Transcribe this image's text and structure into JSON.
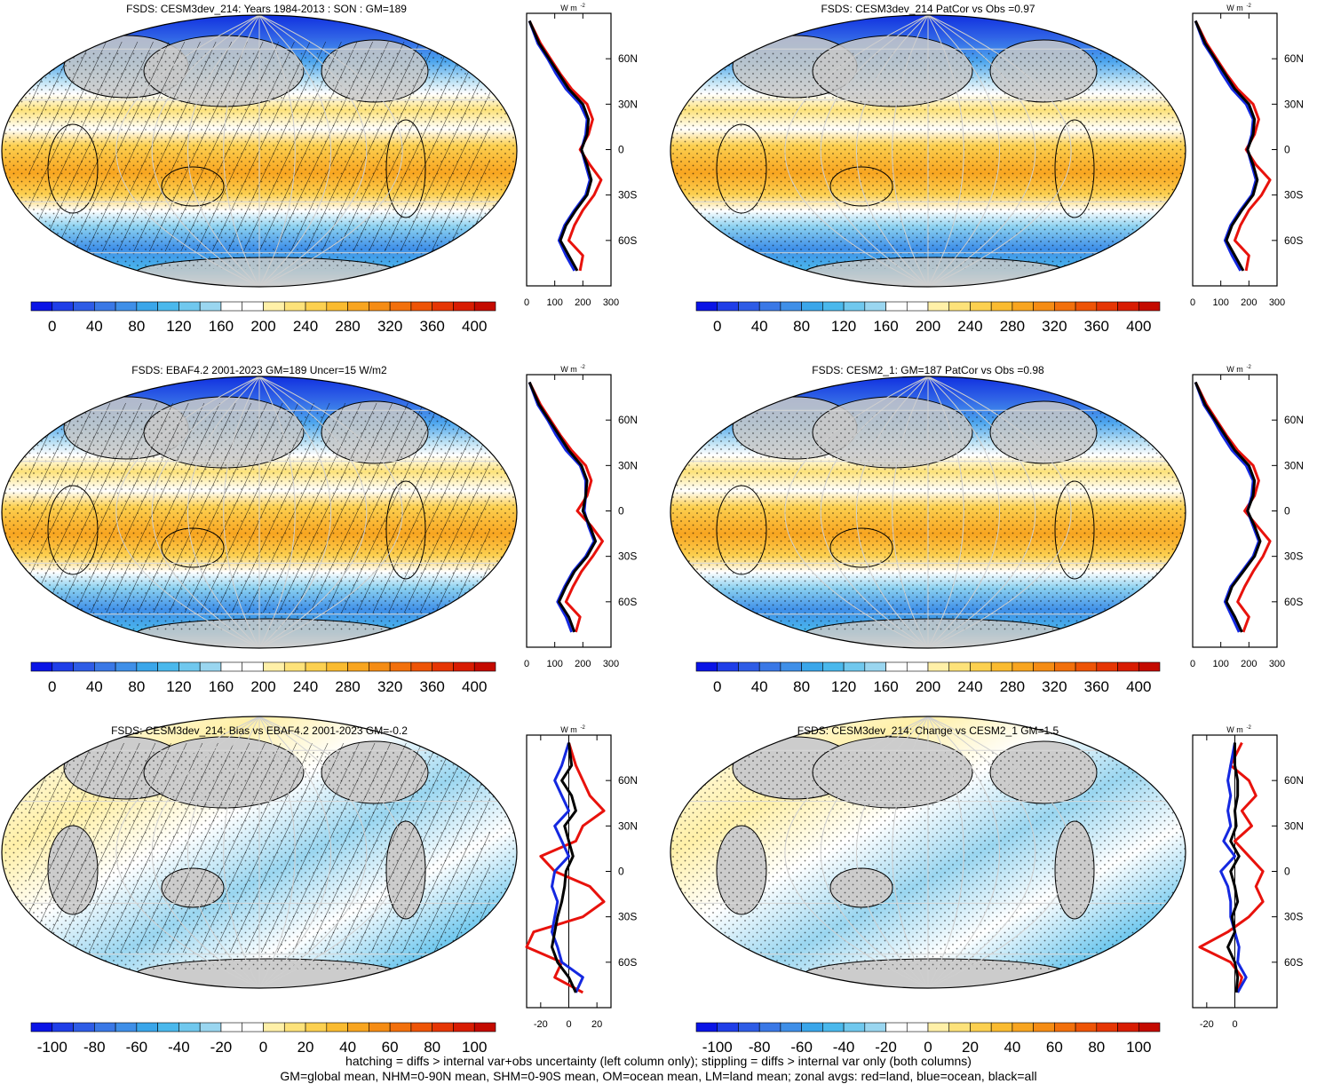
{
  "panels": [
    {
      "title": "FSDS: CESM3dev_214: Years 1984-2013 : SON : GM=189"
    },
    {
      "title": "FSDS: CESM3dev_214 PatCor vs Obs =0.97"
    },
    {
      "title": "FSDS: EBAF4.2 2001-2023 GM=189 Uncer=15 W/m2"
    },
    {
      "title": "FSDS: CESM2_1: GM=187 PatCor vs Obs =0.98"
    },
    {
      "title": "FSDS: CESM3dev_214: Bias vs EBAF4.2 2001-2023  GM=-0.2"
    },
    {
      "title": "FSDS: CESM3dev_214: Change vs CESM2_1 GM=1.5"
    }
  ],
  "colorbars": {
    "absolute": {
      "labels": [
        "0",
        "40",
        "80",
        "120",
        "160",
        "200",
        "240",
        "280",
        "320",
        "360",
        "400"
      ],
      "colors": [
        "#0a14e6",
        "#1f3ee8",
        "#2e5ce6",
        "#3a78e6",
        "#3f8fe8",
        "#3aa6ea",
        "#4ab8ec",
        "#70c8ee",
        "#9ad6f0",
        "#ffffff",
        "#ffffff",
        "#fff0a8",
        "#fde27a",
        "#fcd050",
        "#fabb30",
        "#f8a520",
        "#f58c14",
        "#f2700c",
        "#ee5406",
        "#e63604",
        "#d81c02",
        "#c40a00"
      ]
    },
    "difference": {
      "labels": [
        "-100",
        "-80",
        "-60",
        "-40",
        "-20",
        "0",
        "20",
        "40",
        "60",
        "80",
        "100"
      ],
      "colors": [
        "#0a14e6",
        "#1f3ee8",
        "#2e5ce6",
        "#3a78e6",
        "#3f8fe8",
        "#3aa6ea",
        "#4ab8ec",
        "#70c8ee",
        "#9ad6f0",
        "#ffffff",
        "#ffffff",
        "#fff0a8",
        "#fde27a",
        "#fcd050",
        "#fabb30",
        "#f8a520",
        "#f58c14",
        "#f2700c",
        "#ee5406",
        "#e63604",
        "#d81c02",
        "#c40a00"
      ]
    }
  },
  "zonal_axes": {
    "lat_labels": [
      "60N",
      "30N",
      "0",
      "30S",
      "60S"
    ],
    "unit_label": "W m",
    "unit_exp": "-2",
    "x_abs": [
      "0",
      "100",
      "200",
      "300"
    ],
    "x_diff": [
      "-20",
      "0",
      "20"
    ],
    "x_diff_right": [
      "-20",
      "0"
    ]
  },
  "footer": {
    "line1": "hatching = diffs > internal var+obs uncertainty (left column only); stippling = diffs > internal var only (both columns)",
    "line2": "GM=global mean, NHM=0-90N mean, SHM=0-90S mean, OM=ocean mean, LM=land mean; zonal avgs: red=land, blue=ocean, black=all"
  },
  "chart_data": {
    "type": "heatmap",
    "variable": "FSDS",
    "series_colors": {
      "land": "#e8120c",
      "ocean": "#1428e0",
      "all": "#000000"
    },
    "zonal_profiles": [
      {
        "lat": [
          85,
          70,
          60,
          50,
          40,
          30,
          20,
          10,
          0,
          -10,
          -20,
          -30,
          -40,
          -50,
          -60,
          -70,
          -80
        ],
        "all": [
          10,
          45,
          80,
          115,
          150,
          200,
          220,
          215,
          195,
          215,
          230,
          215,
          175,
          140,
          120,
          150,
          180
        ],
        "land": [
          10,
          50,
          85,
          120,
          160,
          215,
          235,
          220,
          190,
          225,
          265,
          240,
          200,
          170,
          150,
          200,
          190
        ],
        "ocean": [
          10,
          40,
          75,
          105,
          140,
          190,
          215,
          210,
          195,
          210,
          225,
          210,
          170,
          135,
          115,
          140,
          170
        ]
      },
      {
        "lat": [
          85,
          70,
          60,
          50,
          40,
          30,
          20,
          10,
          0,
          -10,
          -20,
          -30,
          -40,
          -50,
          -60,
          -70,
          -80
        ],
        "all": [
          10,
          45,
          80,
          115,
          150,
          200,
          220,
          215,
          195,
          215,
          230,
          215,
          175,
          140,
          120,
          150,
          180
        ],
        "land": [
          10,
          50,
          85,
          120,
          160,
          215,
          235,
          220,
          190,
          225,
          275,
          245,
          200,
          170,
          150,
          200,
          190
        ],
        "ocean": [
          10,
          40,
          75,
          105,
          140,
          190,
          215,
          210,
          195,
          210,
          225,
          210,
          170,
          135,
          115,
          140,
          170
        ]
      },
      {
        "lat": [
          85,
          70,
          60,
          50,
          40,
          30,
          20,
          10,
          0,
          -10,
          -20,
          -30,
          -40,
          -50,
          -60,
          -70,
          -80
        ],
        "all": [
          10,
          45,
          80,
          115,
          150,
          195,
          215,
          210,
          200,
          225,
          245,
          215,
          170,
          140,
          115,
          150,
          170
        ],
        "land": [
          10,
          50,
          85,
          120,
          160,
          210,
          230,
          215,
          180,
          230,
          270,
          235,
          195,
          165,
          140,
          190,
          175
        ],
        "ocean": [
          10,
          40,
          75,
          105,
          140,
          190,
          210,
          210,
          205,
          220,
          240,
          210,
          165,
          135,
          110,
          140,
          160
        ]
      },
      {
        "lat": [
          85,
          70,
          60,
          50,
          40,
          30,
          20,
          10,
          0,
          -10,
          -20,
          -30,
          -40,
          -50,
          -60,
          -70,
          -80
        ],
        "all": [
          10,
          45,
          80,
          115,
          150,
          200,
          220,
          215,
          195,
          220,
          240,
          220,
          180,
          140,
          120,
          150,
          175
        ],
        "land": [
          10,
          50,
          85,
          120,
          160,
          215,
          235,
          220,
          185,
          230,
          275,
          250,
          215,
          185,
          160,
          200,
          180
        ],
        "ocean": [
          10,
          40,
          75,
          105,
          140,
          190,
          215,
          210,
          195,
          215,
          235,
          215,
          175,
          135,
          115,
          140,
          165
        ]
      },
      {
        "lat": [
          85,
          70,
          60,
          50,
          40,
          30,
          20,
          10,
          0,
          -10,
          -20,
          -30,
          -40,
          -50,
          -60,
          -70,
          -80
        ],
        "all": [
          0,
          2,
          -5,
          2,
          5,
          -3,
          0,
          3,
          -2,
          -3,
          -5,
          -8,
          -10,
          -12,
          -8,
          0,
          5
        ],
        "land": [
          0,
          5,
          10,
          15,
          25,
          10,
          5,
          -20,
          -10,
          15,
          25,
          10,
          -25,
          -30,
          -5,
          -10,
          10
        ],
        "ocean": [
          0,
          -5,
          -10,
          -5,
          0,
          -10,
          -5,
          0,
          -10,
          -12,
          -8,
          -10,
          -12,
          -8,
          -5,
          10,
          5
        ]
      },
      {
        "lat": [
          85,
          70,
          60,
          50,
          40,
          30,
          20,
          10,
          0,
          -10,
          -20,
          -30,
          -40,
          -50,
          -60,
          -70,
          -80
        ],
        "all": [
          0,
          0,
          2,
          2,
          0,
          1,
          -3,
          3,
          -3,
          0,
          2,
          -2,
          0,
          -5,
          0,
          2,
          1
        ],
        "land": [
          5,
          -3,
          10,
          15,
          5,
          12,
          0,
          10,
          20,
          15,
          20,
          10,
          -5,
          -25,
          -3,
          5,
          2
        ],
        "ocean": [
          0,
          -3,
          -5,
          -3,
          -5,
          -3,
          -8,
          0,
          -10,
          -5,
          -3,
          -3,
          0,
          3,
          2,
          8,
          2
        ]
      }
    ]
  }
}
